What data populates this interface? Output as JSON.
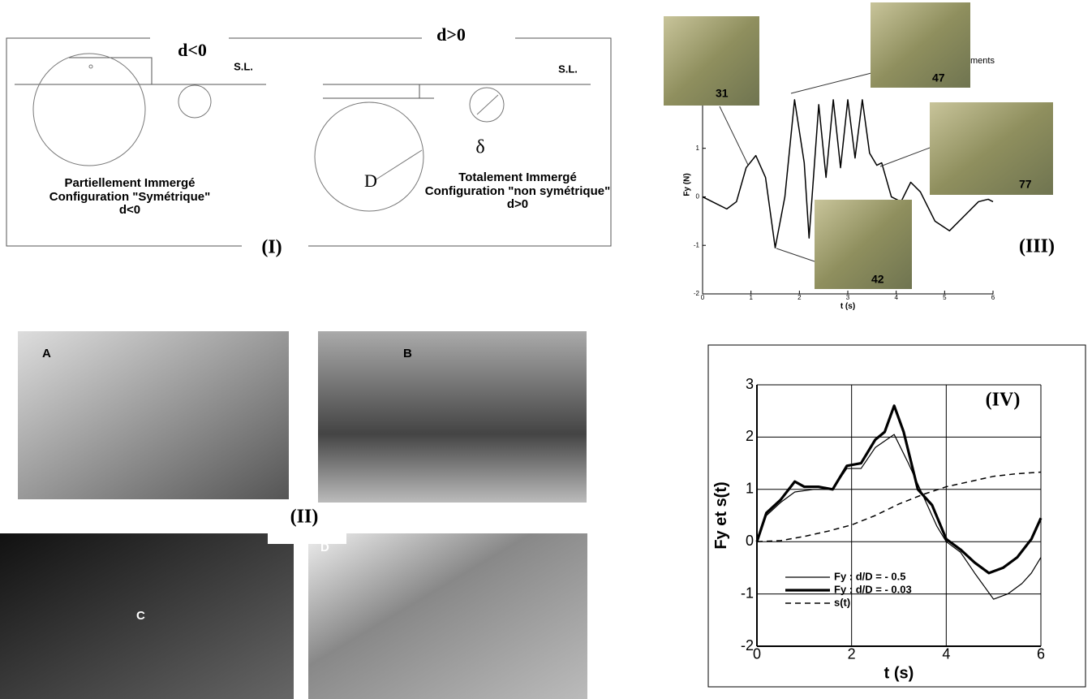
{
  "panel_I": {
    "label": "(I)",
    "left_title": "d<0",
    "right_title": "d>0",
    "sl_left": "S.L.",
    "sl_right": "S.L.",
    "diameter": "D",
    "delta": "δ",
    "left_caption": [
      "Partiellement Immergé",
      "Configuration \"Symétrique\"",
      "d<0"
    ],
    "right_caption": [
      "Totalement Immergé",
      "Configuration \"non symétrique\"",
      "d>0"
    ]
  },
  "panel_II": {
    "label": "(II)",
    "photos": [
      "A",
      "B",
      "C",
      "D"
    ]
  },
  "panel_III": {
    "label": "(III)",
    "snapshots": [
      "31",
      "47",
      "77",
      "42"
    ],
    "legend_fragment": "ments"
  },
  "chart_data": [
    {
      "type": "line",
      "xlabel": "t (s)",
      "ylabel": "Fy (N)",
      "xlim": [
        0,
        6
      ],
      "ylim": [
        -2,
        2.5
      ],
      "xticks": [
        0,
        1,
        2,
        3,
        4,
        5,
        6
      ],
      "yticks": [
        -2,
        -1,
        0,
        1
      ],
      "series": [
        {
          "color": "#000000",
          "x": [
            0,
            0.2,
            0.5,
            0.7,
            0.9,
            1.1,
            1.3,
            1.5,
            1.7,
            1.9,
            2.1,
            2.2,
            2.4,
            2.55,
            2.7,
            2.85,
            3.0,
            3.15,
            3.3,
            3.45,
            3.6,
            3.7,
            3.9,
            4.1,
            4.3,
            4.5,
            4.8,
            5.1,
            5.4,
            5.7,
            5.9,
            6
          ],
          "values": [
            0,
            -0.1,
            -0.25,
            -0.1,
            0.6,
            0.85,
            0.4,
            -1.05,
            0,
            2.0,
            0.7,
            -0.85,
            1.9,
            0.4,
            2.0,
            0.6,
            2.0,
            0.8,
            2.0,
            0.9,
            0.65,
            0.7,
            0,
            -0.1,
            0.3,
            0.1,
            -0.5,
            -0.7,
            -0.4,
            -0.1,
            -0.05,
            -0.1
          ]
        }
      ]
    },
    {
      "type": "line",
      "title": "(IV)",
      "xlabel": "t (s)",
      "ylabel": "Fy et s(t)",
      "xlim": [
        0,
        6
      ],
      "ylim": [
        -2,
        3
      ],
      "xticks": [
        0,
        2,
        4,
        6
      ],
      "yticks": [
        -2,
        -1,
        0,
        1,
        2,
        3
      ],
      "grid": true,
      "series": [
        {
          "name": "Fy : d/D = - 0.5",
          "color": "#000000",
          "width": 1.2,
          "dash": false,
          "x": [
            0,
            0.2,
            0.5,
            0.8,
            1.2,
            1.6,
            1.9,
            2.2,
            2.5,
            2.9,
            3.2,
            3.5,
            3.8,
            4.0,
            4.3,
            4.6,
            5.0,
            5.3,
            5.6,
            5.8,
            6
          ],
          "values": [
            0,
            0.5,
            0.75,
            0.95,
            1.0,
            1.0,
            1.4,
            1.4,
            1.8,
            2.05,
            1.5,
            0.9,
            0.3,
            0,
            -0.2,
            -0.6,
            -1.1,
            -1.0,
            -0.8,
            -0.6,
            -0.3
          ]
        },
        {
          "name": "Fy : d/D = - 0.03",
          "color": "#000000",
          "width": 3.2,
          "dash": false,
          "x": [
            0,
            0.2,
            0.5,
            0.8,
            1.0,
            1.3,
            1.6,
            1.9,
            2.2,
            2.5,
            2.7,
            2.9,
            3.1,
            3.4,
            3.7,
            4.0,
            4.3,
            4.6,
            4.9,
            5.2,
            5.5,
            5.8,
            6
          ],
          "values": [
            0,
            0.55,
            0.8,
            1.15,
            1.05,
            1.05,
            1.0,
            1.45,
            1.5,
            1.95,
            2.1,
            2.6,
            2.1,
            1.0,
            0.7,
            0.05,
            -0.15,
            -0.4,
            -0.6,
            -0.5,
            -0.3,
            0.05,
            0.45
          ]
        },
        {
          "name": "s(t)",
          "color": "#000000",
          "width": 1.5,
          "dash": true,
          "x": [
            0,
            0.5,
            1,
            1.5,
            2,
            2.5,
            3,
            3.5,
            4,
            4.5,
            5,
            5.5,
            6
          ],
          "values": [
            0,
            0.02,
            0.1,
            0.2,
            0.32,
            0.5,
            0.72,
            0.9,
            1.05,
            1.15,
            1.25,
            1.3,
            1.33
          ]
        }
      ]
    }
  ]
}
